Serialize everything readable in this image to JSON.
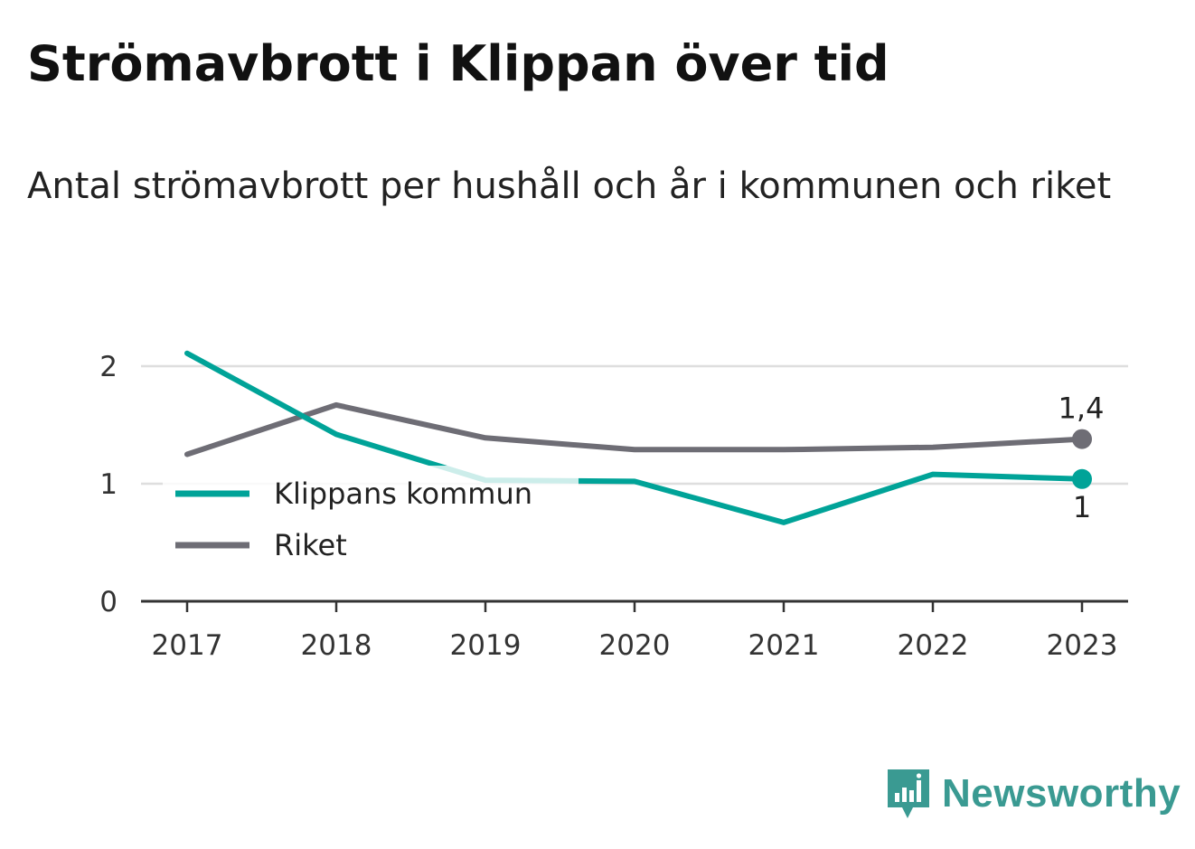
{
  "title": "Strömavbrott i Klippan över tid",
  "subtitle": "Antal strömavbrott per hushåll och år i kommunen och riket",
  "brand": {
    "name": "Newsworthy",
    "icon": "newsworthy-logo-icon",
    "color": "#3a9a92"
  },
  "chart_data": {
    "type": "line",
    "x": [
      "2017",
      "2018",
      "2019",
      "2020",
      "2021",
      "2022",
      "2023"
    ],
    "series": [
      {
        "name": "Klippans kommun",
        "color": "#00a398",
        "values": [
          2.11,
          1.42,
          1.03,
          1.02,
          0.67,
          1.08,
          1.04
        ],
        "end_label": "1"
      },
      {
        "name": "Riket",
        "color": "#6e6d75",
        "values": [
          1.25,
          1.67,
          1.39,
          1.29,
          1.29,
          1.31,
          1.38
        ],
        "end_label": "1,4"
      }
    ],
    "y_ticks": [
      "0",
      "1",
      "2"
    ],
    "ylim": [
      0,
      2.2
    ],
    "grid": true,
    "legend": "bottom-left"
  }
}
